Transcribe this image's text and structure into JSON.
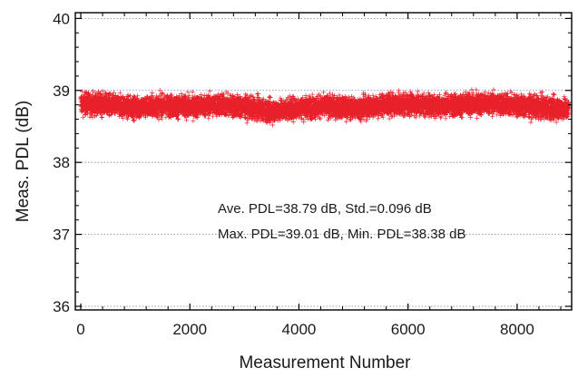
{
  "chart_data": {
    "type": "scatter",
    "title": "",
    "xlabel": "Measurement Number",
    "ylabel": "Meas. PDL (dB)",
    "xlim": [
      -100,
      9000
    ],
    "ylim": [
      35.95,
      40.08
    ],
    "x_ticks": [
      0,
      2000,
      4000,
      6000,
      8000
    ],
    "x_tick_labels": [
      "0",
      "2000",
      "4000",
      "6000",
      "8000"
    ],
    "y_ticks": [
      36,
      37,
      38,
      39,
      40
    ],
    "y_tick_labels": [
      "36",
      "37",
      "38",
      "39",
      "40"
    ],
    "grid": "horizontal dotted",
    "marker": "+",
    "series": [
      {
        "color": "#e8202a",
        "n_points": 9000,
        "mean": 38.79,
        "std": 0.096,
        "max": 39.01,
        "min": 38.38,
        "x_start": 0,
        "x_end": 8950,
        "trend": [
          {
            "x": 0,
            "y": 38.82
          },
          {
            "x": 500,
            "y": 38.8
          },
          {
            "x": 1000,
            "y": 38.76
          },
          {
            "x": 1500,
            "y": 38.79
          },
          {
            "x": 2000,
            "y": 38.77
          },
          {
            "x": 2500,
            "y": 38.8
          },
          {
            "x": 3000,
            "y": 38.77
          },
          {
            "x": 3500,
            "y": 38.71
          },
          {
            "x": 4000,
            "y": 38.76
          },
          {
            "x": 4500,
            "y": 38.78
          },
          {
            "x": 5000,
            "y": 38.75
          },
          {
            "x": 5500,
            "y": 38.79
          },
          {
            "x": 6000,
            "y": 38.81
          },
          {
            "x": 6500,
            "y": 38.79
          },
          {
            "x": 7000,
            "y": 38.8
          },
          {
            "x": 7500,
            "y": 38.82
          },
          {
            "x": 8000,
            "y": 38.79
          },
          {
            "x": 8500,
            "y": 38.76
          },
          {
            "x": 8950,
            "y": 38.74
          }
        ]
      }
    ],
    "annotations": [
      "Ave. PDL=38.79 dB, Std.=0.096 dB",
      "Max. PDL=39.01 dB, Min. PDL=38.38 dB"
    ]
  }
}
